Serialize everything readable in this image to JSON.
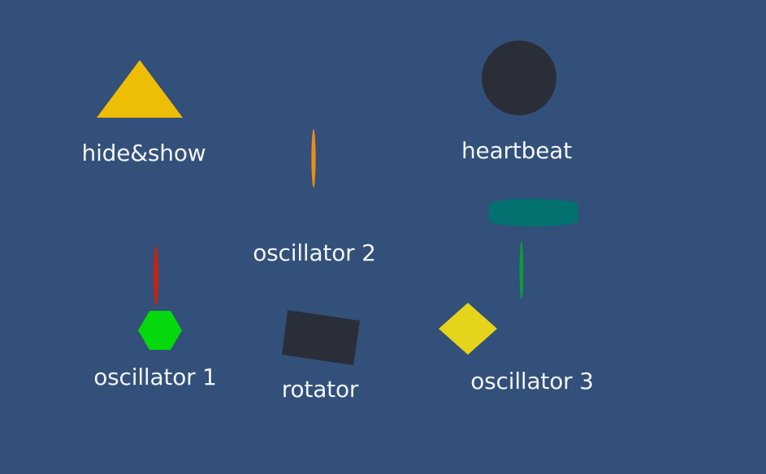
{
  "scene": {
    "background_color": "#325079",
    "label_color": "#f2f4f8",
    "items": [
      {
        "label": "hide&show",
        "shape": "triangle-icon",
        "color": "#eebd05"
      },
      {
        "label": "oscillator 2",
        "shape": "capsule-icon",
        "color": "#ee8c14"
      },
      {
        "label": "heartbeat",
        "shape": "circle-icon",
        "color": "#2a2e38"
      },
      {
        "label": "oscillator 1",
        "shape": "hexagon-icon",
        "color": "#05d80d"
      },
      {
        "label": "rotator",
        "shape": "square-icon",
        "color": "#2a2e38"
      },
      {
        "label": "oscillator 3",
        "shape": "diamond-icon",
        "color": "#e6d31b"
      }
    ],
    "extra_shapes": [
      {
        "shape": "red-needle-icon",
        "color": "#c8230f"
      },
      {
        "shape": "teal-cylinder-icon",
        "color": "#02716f"
      },
      {
        "shape": "green-needle-icon",
        "color": "#0f9a3b"
      }
    ]
  }
}
